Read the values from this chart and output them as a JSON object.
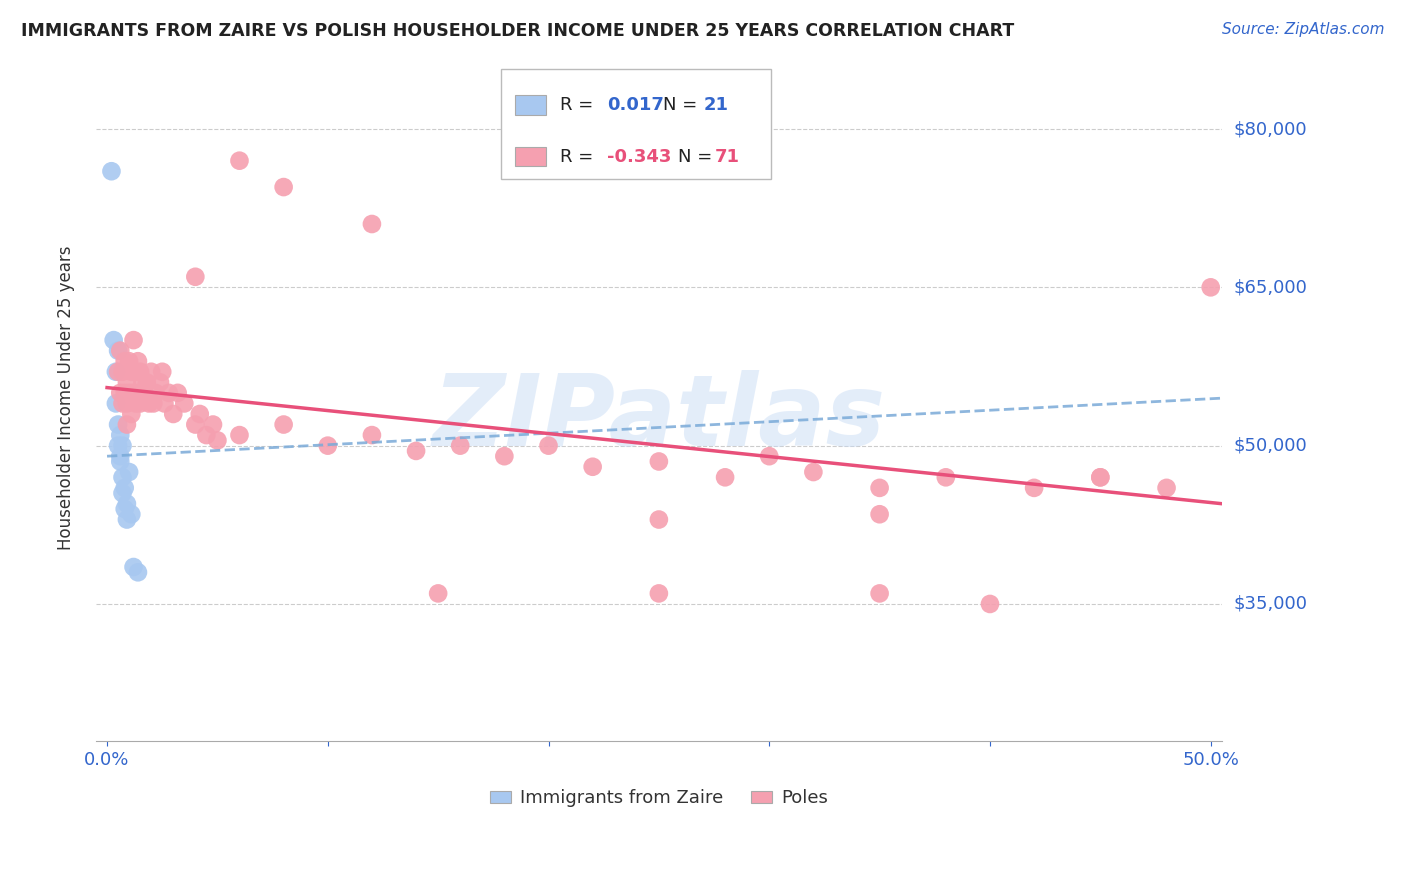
{
  "title": "IMMIGRANTS FROM ZAIRE VS POLISH HOUSEHOLDER INCOME UNDER 25 YEARS CORRELATION CHART",
  "source": "Source: ZipAtlas.com",
  "ylabel": "Householder Income Under 25 years",
  "xlim": [
    -0.005,
    0.505
  ],
  "ylim": [
    22000,
    87000
  ],
  "yticks": [
    35000,
    50000,
    65000,
    80000
  ],
  "ytick_labels": [
    "$35,000",
    "$50,000",
    "$65,000",
    "$80,000"
  ],
  "xticks": [
    0.0,
    0.1,
    0.2,
    0.3,
    0.4,
    0.5
  ],
  "xtick_labels": [
    "0.0%",
    "",
    "",
    "",
    "",
    "50.0%"
  ],
  "zaire_R": 0.017,
  "zaire_N": 21,
  "poles_R": -0.343,
  "poles_N": 71,
  "zaire_color": "#a8c8f0",
  "poles_color": "#f5a0b0",
  "zaire_line_color": "#7aaad8",
  "poles_line_color": "#e8507a",
  "watermark": "ZIPatlas",
  "background_color": "#ffffff",
  "grid_color": "#cccccc",
  "axis_color": "#3366cc",
  "legend_text_color": "#222222",
  "zaire_points_x": [
    0.003,
    0.004,
    0.004,
    0.005,
    0.005,
    0.006,
    0.006,
    0.007,
    0.007,
    0.008,
    0.008,
    0.009,
    0.009,
    0.01,
    0.011,
    0.012,
    0.014,
    0.005,
    0.006,
    0.007,
    0.002
  ],
  "zaire_points_y": [
    60000,
    57000,
    54000,
    52000,
    50000,
    51000,
    48500,
    50000,
    47000,
    46000,
    44000,
    44500,
    43000,
    47500,
    43500,
    38500,
    38000,
    59000,
    49000,
    45500,
    76000
  ],
  "poles_points_x": [
    0.005,
    0.006,
    0.006,
    0.007,
    0.007,
    0.008,
    0.008,
    0.009,
    0.009,
    0.009,
    0.01,
    0.01,
    0.011,
    0.011,
    0.012,
    0.012,
    0.013,
    0.013,
    0.014,
    0.014,
    0.015,
    0.015,
    0.016,
    0.017,
    0.018,
    0.019,
    0.02,
    0.021,
    0.022,
    0.024,
    0.025,
    0.026,
    0.028,
    0.03,
    0.032,
    0.035,
    0.04,
    0.042,
    0.045,
    0.048,
    0.05,
    0.06,
    0.08,
    0.1,
    0.12,
    0.14,
    0.16,
    0.18,
    0.2,
    0.22,
    0.25,
    0.28,
    0.32,
    0.35,
    0.38,
    0.42,
    0.45,
    0.48,
    0.5,
    0.15,
    0.25,
    0.35,
    0.45,
    0.25,
    0.35,
    0.12,
    0.08,
    0.06,
    0.04,
    0.3,
    0.4
  ],
  "poles_points_y": [
    57000,
    59000,
    55000,
    57000,
    54000,
    58000,
    55000,
    56000,
    54000,
    52000,
    58000,
    55000,
    57000,
    53000,
    60000,
    55000,
    57000,
    54000,
    58000,
    55000,
    57000,
    54000,
    56000,
    55000,
    56000,
    54000,
    57000,
    54000,
    55000,
    56000,
    57000,
    54000,
    55000,
    53000,
    55000,
    54000,
    52000,
    53000,
    51000,
    52000,
    50500,
    51000,
    52000,
    50000,
    51000,
    49500,
    50000,
    49000,
    50000,
    48000,
    48500,
    47000,
    47500,
    46000,
    47000,
    46000,
    47000,
    46000,
    65000,
    36000,
    36000,
    36000,
    47000,
    43000,
    43500,
    71000,
    74500,
    77000,
    66000,
    49000,
    35000
  ]
}
